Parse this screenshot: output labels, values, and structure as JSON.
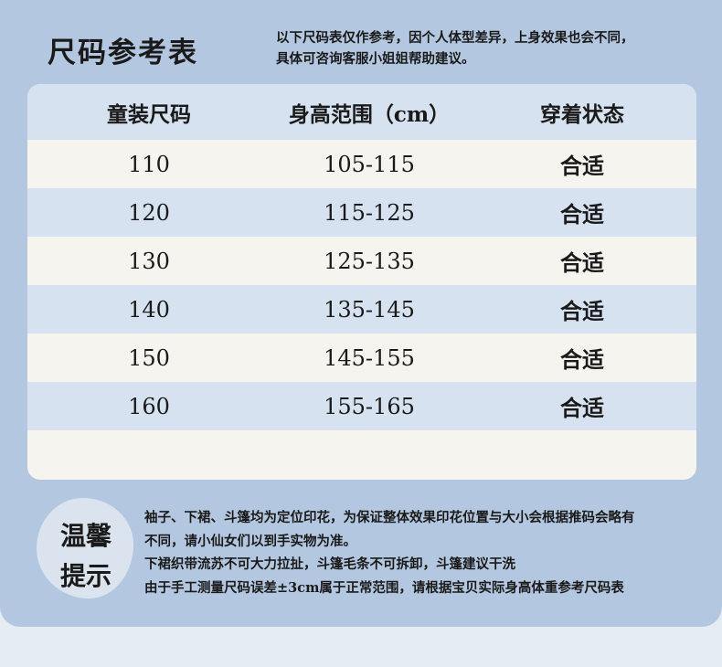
{
  "title": "尺码参考表",
  "note": [
    "以下尺码表仅作参考，因个人体型差异，上身效果也会不同，",
    "具体可咨询客服小姐姐帮助建议。"
  ],
  "table": {
    "headers": [
      "童装尺码",
      "身高范围（cm）",
      "穿着状态"
    ],
    "rows": [
      [
        "110",
        "105-115",
        "合适"
      ],
      [
        "120",
        "115-125",
        "合适"
      ],
      [
        "130",
        "125-135",
        "合适"
      ],
      [
        "140",
        "135-145",
        "合适"
      ],
      [
        "150",
        "145-155",
        "合适"
      ],
      [
        "160",
        "155-165",
        "合适"
      ]
    ]
  },
  "tips": {
    "label": [
      "温馨",
      "提示"
    ],
    "lines": [
      "袖子、下裙、斗篷均为定位印花，为保证整体效果印花位置与大小会根据推码会略有",
      "不同，请小仙女们以到手实物为准。",
      "下裙织带流苏不可大力拉扯，斗篷毛条不可拆卸，斗篷建议干洗",
      "由于手工测量尺码误差±3cm属于正常范围，请根据宝贝实际身高体重参考尺码表"
    ]
  },
  "colors": {
    "background": "#b3c8e0",
    "row_alt": "#d6e2ef",
    "row": "#f5f4ef"
  }
}
